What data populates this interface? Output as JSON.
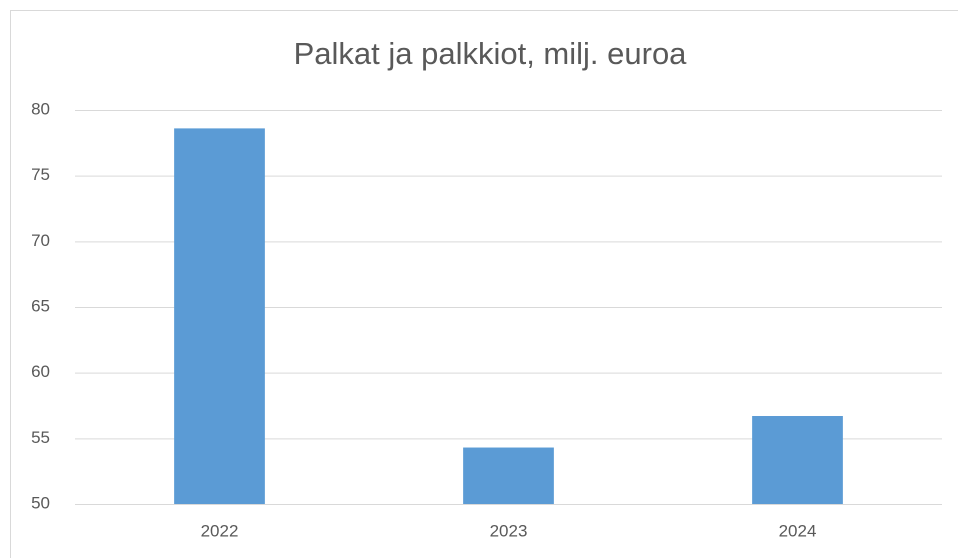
{
  "chart_data": {
    "type": "bar",
    "title": "Palkat ja palkkiot, milj. euroa",
    "categories": [
      "2022",
      "2023",
      "2024"
    ],
    "values": [
      78.6,
      54.3,
      56.7
    ],
    "color": "#5b9bd5",
    "ylim": [
      50,
      80
    ],
    "yticks": [
      50,
      55,
      60,
      65,
      70,
      75,
      80
    ],
    "grid": true
  }
}
